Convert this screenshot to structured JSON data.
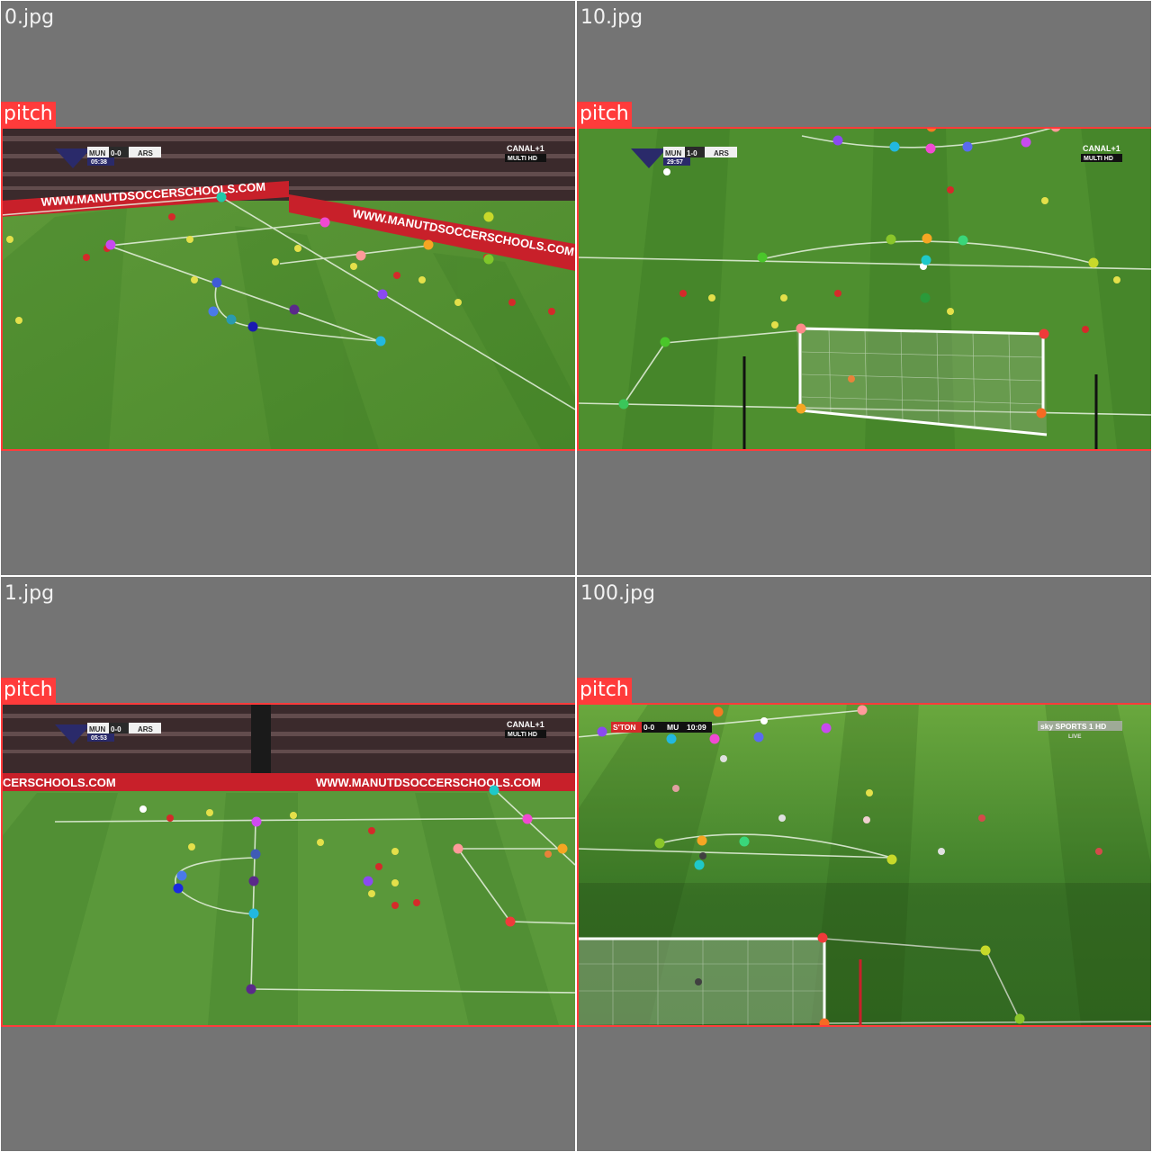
{
  "tiles": [
    {
      "filename": "0.jpg",
      "label": "pitch",
      "box_color": "#ff3b3b",
      "scoreboard": {
        "home": "MUN",
        "score": "0-0",
        "away": "ARS",
        "clock": "05:38"
      },
      "broadcaster": {
        "name": "CANAL+1",
        "sub": "MULTI HD"
      },
      "ad_text": [
        "WWW.MANUTDSOCCERSCHOOLS.COM",
        "WWW.MANUTDSOCCERSCHOOLS.COM"
      ]
    },
    {
      "filename": "10.jpg",
      "label": "pitch",
      "box_color": "#ff3b3b",
      "scoreboard": {
        "home": "MUN",
        "score": "1-0",
        "away": "ARS",
        "clock": "29:57"
      },
      "broadcaster": {
        "name": "CANAL+1",
        "sub": "MULTI HD"
      }
    },
    {
      "filename": "1.jpg",
      "label": "pitch",
      "box_color": "#ff3b3b",
      "scoreboard": {
        "home": "MUN",
        "score": "0-0",
        "away": "ARS",
        "clock": "05:53"
      },
      "broadcaster": {
        "name": "CANAL+1",
        "sub": "MULTI HD"
      },
      "ad_text": [
        "CERSCHOOLS.COM",
        "WWW.MANUTDSOCCERSCHOOLS.COM"
      ]
    },
    {
      "filename": "100.jpg",
      "label": "pitch",
      "box_color": "#ff3b3b",
      "scoreboard": {
        "home": "S'TON",
        "score": "0-0",
        "away": "MU",
        "clock": "10:09"
      },
      "broadcaster": {
        "name": "sky SPORTS 1 HD",
        "sub": "LIVE"
      }
    }
  ]
}
